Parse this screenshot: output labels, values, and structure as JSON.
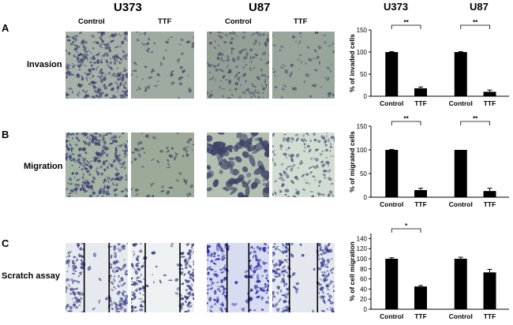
{
  "figure": {
    "column_headers": [
      "U373",
      "U87"
    ],
    "chart_column_headers": [
      "U373",
      "U87"
    ],
    "image_subheaders": [
      "Control",
      "TTF",
      "Control",
      "TTF"
    ],
    "rows": [
      {
        "letter": "A",
        "label": "Invasion"
      },
      {
        "letter": "B",
        "label": "Migration"
      },
      {
        "letter": "C",
        "label": "Scratch assay"
      }
    ]
  },
  "colors": {
    "bar": "#000000",
    "invasion_stain_bg": "#9aa8a0",
    "invasion_stain_cell": "#4a4f78",
    "migration_control_bg": "#a3b0a0",
    "migration_ttf_bg": "#c9d6c9",
    "scratch_cell": "#3b3f9a",
    "scratch_bg": "#e8ecef"
  },
  "chart_data": [
    {
      "type": "bar",
      "categories": [
        "Control",
        "TTF",
        "Control",
        "TTF"
      ],
      "groups": [
        "U373",
        "U87"
      ],
      "values": [
        100,
        18,
        100,
        10
      ],
      "errors": [
        1,
        3,
        1,
        4
      ],
      "ylabel": "% of invaded cells",
      "ylim": [
        0,
        150
      ],
      "yticks": [
        "0",
        "50",
        "100",
        "150"
      ],
      "significance": [
        {
          "from": 0,
          "to": 1,
          "label": "**"
        },
        {
          "from": 2,
          "to": 3,
          "label": "**"
        }
      ]
    },
    {
      "type": "bar",
      "categories": [
        "Control",
        "TTF",
        "Control",
        "TTF"
      ],
      "groups": [
        "U373",
        "U87"
      ],
      "values": [
        100,
        15,
        100,
        13
      ],
      "errors": [
        1,
        4,
        0,
        6
      ],
      "ylabel": "% of migrated cells",
      "ylim": [
        0,
        150
      ],
      "yticks": [
        "0",
        "50",
        "100",
        "150"
      ],
      "significance": [
        {
          "from": 0,
          "to": 1,
          "label": "**"
        },
        {
          "from": 2,
          "to": 3,
          "label": "**"
        }
      ]
    },
    {
      "type": "bar",
      "categories": [
        "Control",
        "TTF",
        "Control",
        "TTF"
      ],
      "groups": [
        "U373",
        "U87"
      ],
      "values": [
        100,
        45,
        100,
        73
      ],
      "errors": [
        2,
        2,
        3,
        6
      ],
      "ylabel": "% of cell migration",
      "ylim": [
        0,
        150
      ],
      "yticks": [
        "0",
        "20",
        "40",
        "60",
        "80",
        "100",
        "120",
        "140"
      ],
      "ytick_values": [
        0,
        20,
        40,
        60,
        80,
        100,
        120,
        140
      ],
      "significance": [
        {
          "from": 0,
          "to": 1,
          "label": "*"
        }
      ]
    }
  ]
}
